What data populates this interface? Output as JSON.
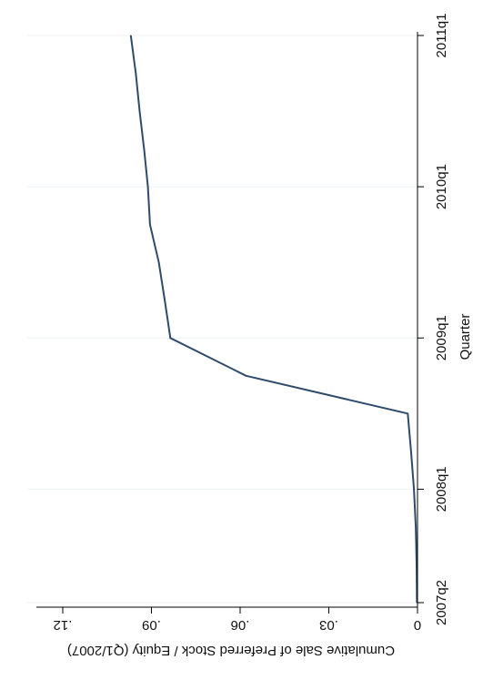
{
  "chart_data": {
    "type": "line",
    "orientation": "rotated-90-clockwise",
    "xlabel": "Quarter",
    "ylabel": "Cumulative Sale of Preferred Stock / Equity (Q1/2007)",
    "x": [
      "2007q2",
      "2007q3",
      "2007q4",
      "2008q1",
      "2008q2",
      "2008q3",
      "2008q4",
      "2009q1",
      "2009q2",
      "2009q3",
      "2009q4",
      "2010q1",
      "2010q2",
      "2010q3",
      "2010q4",
      "2011q1"
    ],
    "x_ticks": [
      "2007q2",
      "2008q1",
      "2009q1",
      "2010q1",
      "2011q1"
    ],
    "y_ticks": [
      "0",
      ".03",
      ".06",
      ".09",
      ".12"
    ],
    "ylim": [
      0,
      0.13
    ],
    "grid": false,
    "series": [
      {
        "color": "#2e4b6b",
        "values": [
          0.0002,
          0.0003,
          0.0006,
          0.0012,
          0.0022,
          0.0033,
          0.058,
          0.0836,
          0.0855,
          0.0875,
          0.0905,
          0.0912,
          0.0925,
          0.094,
          0.0953,
          0.097
        ]
      }
    ]
  }
}
